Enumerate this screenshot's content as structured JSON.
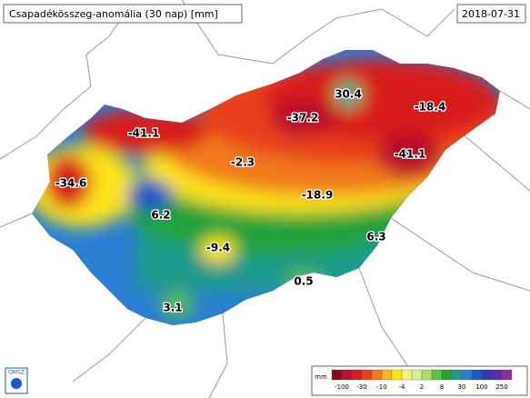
{
  "header": {
    "title": "Csapadékösszeg-anomália (30 nap) [mm]",
    "date": "2018-07-31"
  },
  "stations": [
    {
      "value": -41.1
    },
    {
      "value": 30.4
    },
    {
      "value": -37.2
    },
    {
      "value": -18.4
    },
    {
      "value": -34.6
    },
    {
      "value": -2.3
    },
    {
      "value": -41.1
    },
    {
      "value": -18.9
    },
    {
      "value": 6.2
    },
    {
      "value": -9.4
    },
    {
      "value": 6.3
    },
    {
      "value": 0.5
    },
    {
      "value": 3.1
    }
  ],
  "legend": {
    "unit": "mm",
    "colors": [
      "#8b0a1c",
      "#b8102a",
      "#d81b1b",
      "#e8401a",
      "#f07a1a",
      "#f7b21c",
      "#fbe31e",
      "#f3f27a",
      "#d6ee9a",
      "#a6dc6a",
      "#5cc24a",
      "#22a23a",
      "#1f9a8a",
      "#2a7fd2",
      "#1f55c6",
      "#2b3ab0",
      "#5a2aa8",
      "#8a2aa8"
    ],
    "ticks": [
      -100,
      -30,
      -10,
      -4,
      2,
      8,
      30,
      100,
      250
    ]
  },
  "logo": "OMSZ"
}
